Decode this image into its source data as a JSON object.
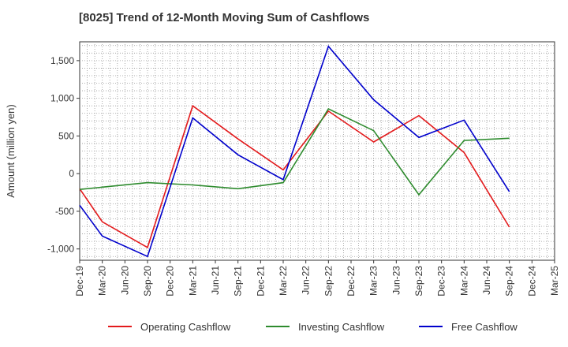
{
  "chart_data": {
    "type": "line",
    "title": "[8025]  Trend of 12-Month Moving Sum of Cashflows",
    "ylabel": "Amount (million yen)",
    "xlabel": "",
    "ylim": [
      -1150,
      1750
    ],
    "yticks": [
      -1000,
      -500,
      0,
      500,
      1000,
      1500
    ],
    "ytick_labels": [
      "-1,000",
      "-500",
      "0",
      "500",
      "1,000",
      "1,500"
    ],
    "categories": [
      "Dec-19",
      "Mar-20",
      "Jun-20",
      "Sep-20",
      "Dec-20",
      "Mar-21",
      "Jun-21",
      "Sep-21",
      "Dec-21",
      "Mar-22",
      "Jun-22",
      "Sep-22",
      "Dec-22",
      "Mar-23",
      "Jun-23",
      "Sep-23",
      "Dec-23",
      "Mar-24",
      "Jun-24",
      "Sep-24",
      "Dec-24",
      "Mar-25"
    ],
    "grid": true,
    "legend_position": "bottom",
    "series": [
      {
        "name": "Operating Cashflow",
        "color": "#e31a1c",
        "values": [
          -200,
          -640,
          null,
          -980,
          null,
          900,
          null,
          460,
          null,
          50,
          null,
          830,
          null,
          420,
          null,
          770,
          null,
          280,
          null,
          -710,
          null,
          null
        ]
      },
      {
        "name": "Investing Cashflow",
        "color": "#2e8b2e",
        "values": [
          -210,
          null,
          null,
          -120,
          null,
          -150,
          null,
          -200,
          null,
          -120,
          null,
          860,
          null,
          570,
          null,
          -280,
          null,
          440,
          null,
          470,
          null,
          null
        ]
      },
      {
        "name": "Free Cashflow",
        "color": "#0000cc",
        "values": [
          -420,
          -830,
          null,
          -1100,
          null,
          740,
          null,
          250,
          null,
          -80,
          null,
          1690,
          null,
          980,
          null,
          480,
          null,
          710,
          null,
          -240,
          null,
          null
        ]
      }
    ]
  }
}
